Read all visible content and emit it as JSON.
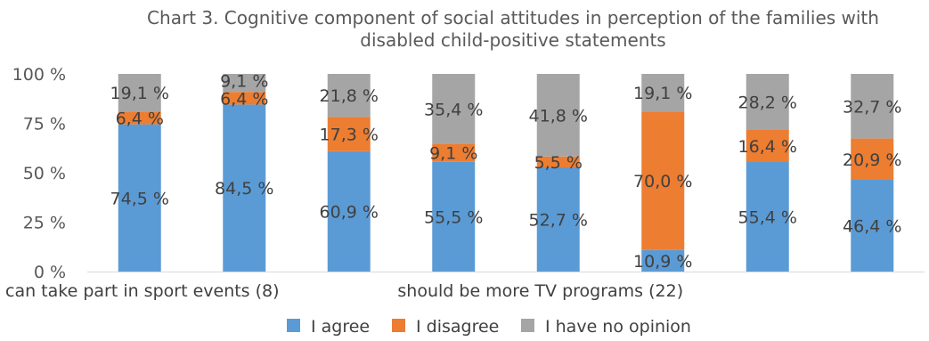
{
  "chart_data": {
    "type": "bar",
    "stacked": true,
    "title_lines": [
      "Chart 3. Cognitive component of social attitudes in perception of the families with",
      "disabled child-positive statements"
    ],
    "categories": [
      "can take part in sport events (8)",
      "",
      "",
      "",
      "should be more TV programs (22)",
      "",
      "",
      ""
    ],
    "series": [
      {
        "name": "I agree",
        "color": "#5b9bd5",
        "values": [
          74.5,
          84.5,
          60.9,
          55.5,
          52.7,
          10.9,
          55.4,
          46.4
        ],
        "labels": [
          "74,5 %",
          "84,5 %",
          "60,9 %",
          "55,5 %",
          "52,7 %",
          "10,9 %",
          "55,4 %",
          "46,4 %"
        ]
      },
      {
        "name": "I disagree",
        "color": "#ed7d31",
        "values": [
          6.4,
          6.4,
          17.3,
          9.1,
          5.5,
          70.0,
          16.4,
          20.9
        ],
        "labels": [
          "6,4 %",
          "6,4 %",
          "17,3 %",
          "9,1 %",
          "5,5 %",
          "70,0 %",
          "16,4 %",
          "20,9 %"
        ]
      },
      {
        "name": "I have no opinion",
        "color": "#a5a5a5",
        "values": [
          19.1,
          9.1,
          21.8,
          35.4,
          41.8,
          19.1,
          28.2,
          32.7
        ],
        "labels": [
          "19,1 %",
          "9,1 %",
          "21,8 %",
          "35,4 %",
          "41,8 %",
          "19,1 %",
          "28,2 %",
          "32,7 %"
        ]
      }
    ],
    "yticks": [
      0,
      25,
      50,
      75,
      100
    ],
    "ytick_labels": [
      "0 %",
      "25 %",
      "50 %",
      "75 %",
      "100 %"
    ],
    "ylim": [
      0,
      100
    ],
    "grid": false,
    "legend_position": "bottom"
  }
}
